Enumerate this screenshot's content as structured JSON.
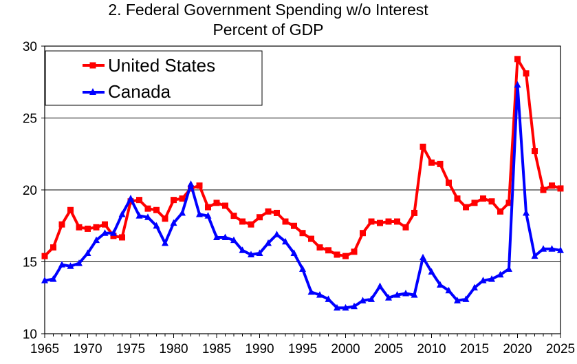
{
  "chart_data": {
    "type": "line",
    "title": "2. Federal Government Spending w/o Interest",
    "subtitle": "Percent of GDP",
    "xlabel": "",
    "ylabel": "",
    "xlim": [
      1965,
      2025
    ],
    "ylim": [
      10,
      30
    ],
    "yticks": [
      "10",
      "15",
      "20",
      "25",
      "30"
    ],
    "xticks": [
      "1965",
      "1970",
      "1975",
      "1980",
      "1985",
      "1990",
      "1995",
      "2000",
      "2005",
      "2010",
      "2015",
      "2020",
      "2025"
    ],
    "grid": "horizontal",
    "legend": "top-left",
    "series": [
      {
        "name": "United States",
        "color": "#ff0000",
        "marker": "square",
        "x": [
          1965,
          1966,
          1967,
          1968,
          1969,
          1970,
          1971,
          1972,
          1973,
          1974,
          1975,
          1976,
          1977,
          1978,
          1979,
          1980,
          1981,
          1982,
          1983,
          1984,
          1985,
          1986,
          1987,
          1988,
          1989,
          1990,
          1991,
          1992,
          1993,
          1994,
          1995,
          1996,
          1997,
          1998,
          1999,
          2000,
          2001,
          2002,
          2003,
          2004,
          2005,
          2006,
          2007,
          2008,
          2009,
          2010,
          2011,
          2012,
          2013,
          2014,
          2015,
          2016,
          2017,
          2018,
          2019,
          2020,
          2021,
          2022,
          2023,
          2024,
          2025
        ],
        "values": [
          15.4,
          16.0,
          17.6,
          18.6,
          17.4,
          17.3,
          17.4,
          17.6,
          16.8,
          16.7,
          19.2,
          19.3,
          18.7,
          18.6,
          18.0,
          19.3,
          19.4,
          20.1,
          20.3,
          18.8,
          19.1,
          18.9,
          18.2,
          17.8,
          17.6,
          18.1,
          18.5,
          18.4,
          17.8,
          17.5,
          17.0,
          16.6,
          16.0,
          15.8,
          15.5,
          15.4,
          15.7,
          17.0,
          17.8,
          17.7,
          17.8,
          17.8,
          17.4,
          18.4,
          23.0,
          21.9,
          21.8,
          20.5,
          19.4,
          18.8,
          19.1,
          19.4,
          19.2,
          18.5,
          19.1,
          29.1,
          28.1,
          22.7,
          20.0,
          20.3,
          20.1
        ]
      },
      {
        "name": "Canada",
        "color": "#0000ff",
        "marker": "triangle",
        "x": [
          1965,
          1966,
          1967,
          1968,
          1969,
          1970,
          1971,
          1972,
          1973,
          1974,
          1975,
          1976,
          1977,
          1978,
          1979,
          1980,
          1981,
          1982,
          1983,
          1984,
          1985,
          1986,
          1987,
          1988,
          1989,
          1990,
          1991,
          1992,
          1993,
          1994,
          1995,
          1996,
          1997,
          1998,
          1999,
          2000,
          2001,
          2002,
          2003,
          2004,
          2005,
          2006,
          2007,
          2008,
          2009,
          2010,
          2011,
          2012,
          2013,
          2014,
          2015,
          2016,
          2017,
          2018,
          2019,
          2020,
          2021,
          2022,
          2023,
          2024,
          2025
        ],
        "values": [
          13.7,
          13.8,
          14.8,
          14.7,
          14.9,
          15.6,
          16.5,
          17.0,
          17.0,
          18.3,
          19.4,
          18.2,
          18.1,
          17.5,
          16.3,
          17.7,
          18.4,
          20.4,
          18.3,
          18.2,
          16.7,
          16.7,
          16.5,
          15.8,
          15.5,
          15.6,
          16.3,
          16.9,
          16.4,
          15.6,
          14.5,
          12.9,
          12.7,
          12.4,
          11.8,
          11.8,
          11.9,
          12.3,
          12.4,
          13.3,
          12.5,
          12.7,
          12.8,
          12.7,
          15.3,
          14.3,
          13.4,
          13.0,
          12.3,
          12.4,
          13.2,
          13.7,
          13.8,
          14.1,
          14.5,
          27.3,
          18.4,
          15.4,
          15.9,
          15.9,
          15.8
        ]
      }
    ]
  }
}
